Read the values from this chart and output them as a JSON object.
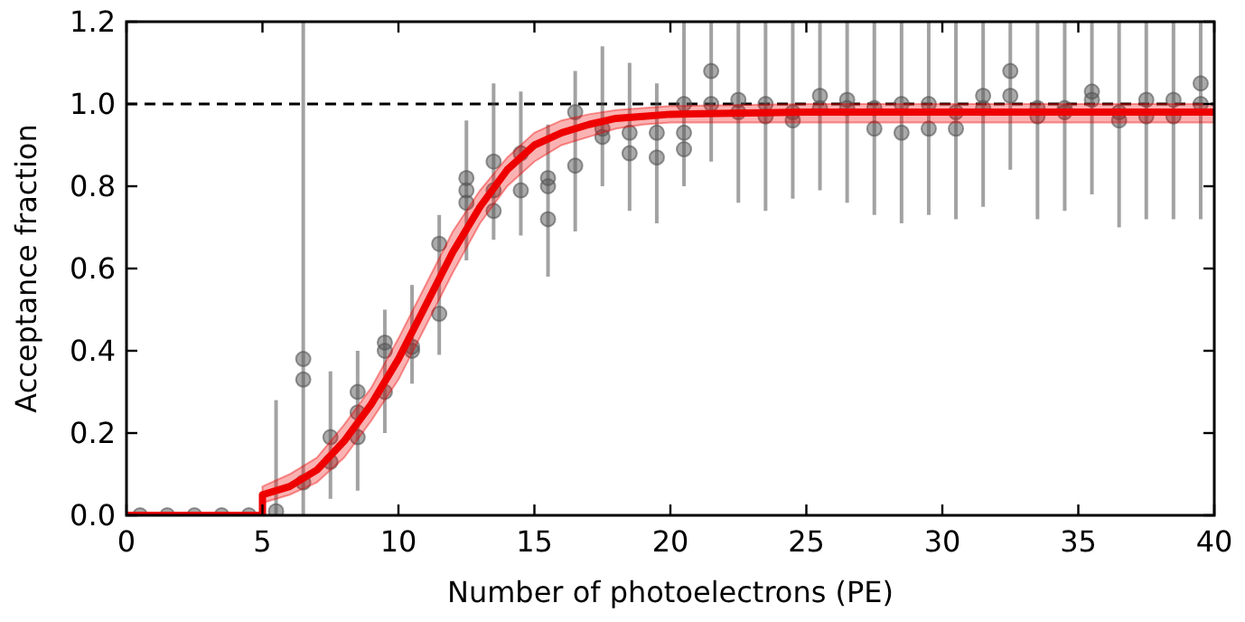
{
  "chart_data": {
    "type": "scatter",
    "xlabel": "Number of photoelectrons (PE)",
    "ylabel": "Acceptance fraction",
    "xlim": [
      0,
      40
    ],
    "xticks": [
      0,
      5,
      10,
      15,
      20,
      25,
      30,
      35,
      40
    ],
    "ylim": [
      0,
      1.2
    ],
    "yticks": [
      {
        "value": 0,
        "label": "0.0"
      },
      {
        "value": 0.2,
        "label": "0.2"
      },
      {
        "value": 0.4,
        "label": "0.4"
      },
      {
        "value": 0.6,
        "label": "0.6"
      },
      {
        "value": 0.8,
        "label": "0.8"
      },
      {
        "value": 1,
        "label": "1.0"
      },
      {
        "value": 1.2,
        "label": "1.2"
      }
    ],
    "grid": false,
    "ref_lines": [
      {
        "axis": "y",
        "value": 1,
        "color": "#000000",
        "line_style": "dashed"
      }
    ],
    "series": [
      {
        "color": "#555555",
        "marker": "circle",
        "x": [
          0.5,
          1.5,
          2.5,
          3.5,
          4.5,
          5.5,
          6.5,
          6.5,
          6.5,
          7.5,
          7.5,
          8.5,
          8.5,
          8.5,
          9.5,
          9.5,
          9.5,
          10.5,
          10.5,
          11.5,
          11.5,
          12.5,
          12.5,
          12.5,
          13.5,
          13.5,
          13.5,
          14.5,
          14.5,
          15.5,
          15.5,
          15.5,
          16.5,
          16.5,
          17.5,
          17.5,
          18.5,
          18.5,
          19.5,
          19.5,
          20.5,
          20.5,
          20.5,
          21.5,
          21.5,
          22.5,
          22.5,
          23.5,
          23.5,
          24.5,
          24.5,
          25.5,
          25.5,
          26.5,
          26.5,
          27.5,
          27.5,
          28.5,
          28.5,
          29.5,
          29.5,
          30.5,
          30.5,
          31.5,
          31.5,
          32.5,
          32.5,
          33.5,
          33.5,
          34.5,
          34.5,
          35.5,
          35.5,
          36.5,
          36.5,
          37.5,
          37.5,
          38.5,
          38.5,
          39.5,
          39.5
        ],
        "values": [
          0,
          0,
          0,
          0,
          0,
          0.01,
          0.38,
          0.33,
          0.08,
          0.19,
          0.13,
          0.3,
          0.25,
          0.19,
          0.42,
          0.4,
          0.3,
          0.4,
          0.41,
          0.66,
          0.49,
          0.82,
          0.79,
          0.76,
          0.86,
          0.79,
          0.74,
          0.88,
          0.79,
          0.82,
          0.8,
          0.72,
          0.98,
          0.85,
          0.92,
          0.94,
          0.88,
          0.93,
          0.93,
          0.87,
          1.0,
          0.93,
          0.89,
          1.08,
          1.0,
          1.01,
          0.98,
          1.0,
          0.97,
          0.98,
          0.96,
          1.02,
          0.99,
          1.01,
          0.99,
          0.99,
          0.94,
          1.0,
          0.93,
          1.0,
          0.94,
          0.98,
          0.94,
          1.02,
          0.99,
          1.08,
          1.02,
          0.99,
          0.97,
          0.99,
          0.98,
          1.03,
          1.01,
          0.96,
          0.98,
          1.01,
          0.97,
          1.01,
          0.97,
          1.05,
          1.0
        ],
        "errors": [
          null,
          null,
          null,
          null,
          null,
          [
            0,
            0.28
          ],
          null,
          null,
          [
            0,
            1.2
          ],
          [
            0.04,
            0.35
          ],
          null,
          [
            0.06,
            0.4
          ],
          null,
          null,
          [
            0.2,
            0.5
          ],
          null,
          null,
          [
            0.32,
            0.56
          ],
          null,
          [
            0.39,
            0.73
          ],
          null,
          [
            0.62,
            0.96
          ],
          null,
          null,
          [
            0.67,
            1.05
          ],
          null,
          null,
          [
            0.68,
            1.03
          ],
          null,
          [
            0.58,
            0.95
          ],
          null,
          null,
          [
            0.69,
            1.08
          ],
          null,
          [
            0.8,
            1.14
          ],
          null,
          [
            0.74,
            1.1
          ],
          null,
          [
            0.71,
            1.05
          ],
          null,
          [
            0.8,
            1.2
          ],
          null,
          null,
          [
            0.86,
            1.2
          ],
          null,
          [
            0.76,
            1.2
          ],
          null,
          [
            0.74,
            1.2
          ],
          null,
          [
            0.77,
            1.2
          ],
          null,
          [
            0.79,
            1.2
          ],
          null,
          [
            0.76,
            1.2
          ],
          null,
          [
            0.73,
            1.2
          ],
          null,
          [
            0.71,
            1.2
          ],
          null,
          [
            0.73,
            1.2
          ],
          null,
          [
            0.72,
            1.2
          ],
          null,
          [
            0.75,
            1.2
          ],
          null,
          [
            0.84,
            1.2
          ],
          null,
          [
            0.72,
            1.2
          ],
          null,
          [
            0.74,
            1.2
          ],
          null,
          [
            0.78,
            1.2
          ],
          null,
          [
            0.7,
            1.2
          ],
          null,
          [
            0.72,
            1.2
          ],
          null,
          [
            0.72,
            1.2
          ],
          null,
          [
            0.72,
            1.2
          ],
          null
        ]
      },
      {
        "type": "line",
        "color": "#ee0000",
        "marker": "none",
        "x": [
          0,
          5,
          5,
          6,
          7,
          8,
          9,
          10,
          11,
          12,
          13,
          14,
          15,
          16,
          17,
          18,
          19,
          20,
          25,
          30,
          40
        ],
        "values": [
          0,
          0,
          0.05,
          0.07,
          0.11,
          0.18,
          0.27,
          0.38,
          0.51,
          0.64,
          0.75,
          0.84,
          0.9,
          0.93,
          0.95,
          0.965,
          0.97,
          0.975,
          0.98,
          0.98,
          0.98
        ],
        "lower": [
          0,
          0,
          0.03,
          0.05,
          0.08,
          0.14,
          0.23,
          0.33,
          0.46,
          0.59,
          0.71,
          0.8,
          0.86,
          0.9,
          0.92,
          0.94,
          0.95,
          0.955,
          0.955,
          0.955,
          0.955
        ],
        "upper": [
          0,
          0,
          0.07,
          0.1,
          0.14,
          0.22,
          0.31,
          0.43,
          0.56,
          0.69,
          0.79,
          0.87,
          0.93,
          0.96,
          0.975,
          0.985,
          0.99,
          0.995,
          1.0,
          1.0,
          1.0
        ]
      }
    ]
  }
}
